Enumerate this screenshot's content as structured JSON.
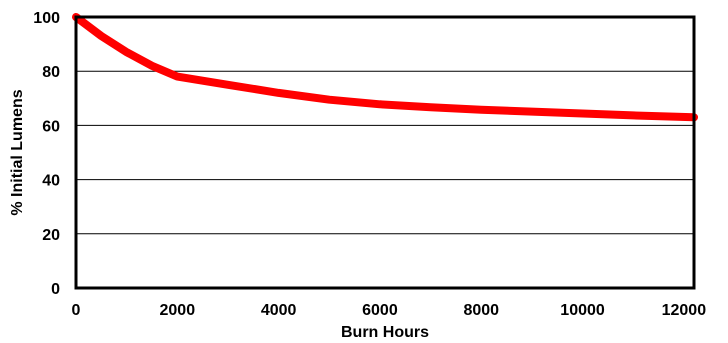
{
  "chart_data": {
    "type": "line",
    "title": "",
    "xlabel": "Burn Hours",
    "ylabel": "% Initial Lumens",
    "xlim": [
      0,
      12200
    ],
    "ylim": [
      0,
      100
    ],
    "x_ticks": [
      0,
      2000,
      4000,
      6000,
      8000,
      10000,
      12000
    ],
    "x_tick_labels": [
      "0",
      "2000",
      "4000",
      "6000",
      "8000",
      "10000",
      "12000"
    ],
    "y_ticks": [
      0,
      20,
      40,
      60,
      80,
      100
    ],
    "y_tick_labels": [
      "0",
      "20",
      "40",
      "60",
      "80",
      "100"
    ],
    "grid": "horizontal",
    "legend": "none",
    "series": [
      {
        "color": "#ff0000",
        "x": [
          0,
          500,
          1000,
          1500,
          2000,
          2500,
          3000,
          4000,
          5000,
          6000,
          7000,
          8000,
          9000,
          10000,
          11000,
          12200
        ],
        "y": [
          100,
          93,
          87,
          82,
          78,
          76.5,
          75,
          72,
          69.5,
          67.8,
          66.7,
          65.8,
          65.1,
          64.4,
          63.7,
          63
        ]
      },
      {
        "color": "#1a237e",
        "x": [
          0,
          1700
        ],
        "y": [
          100,
          100
        ]
      }
    ]
  }
}
